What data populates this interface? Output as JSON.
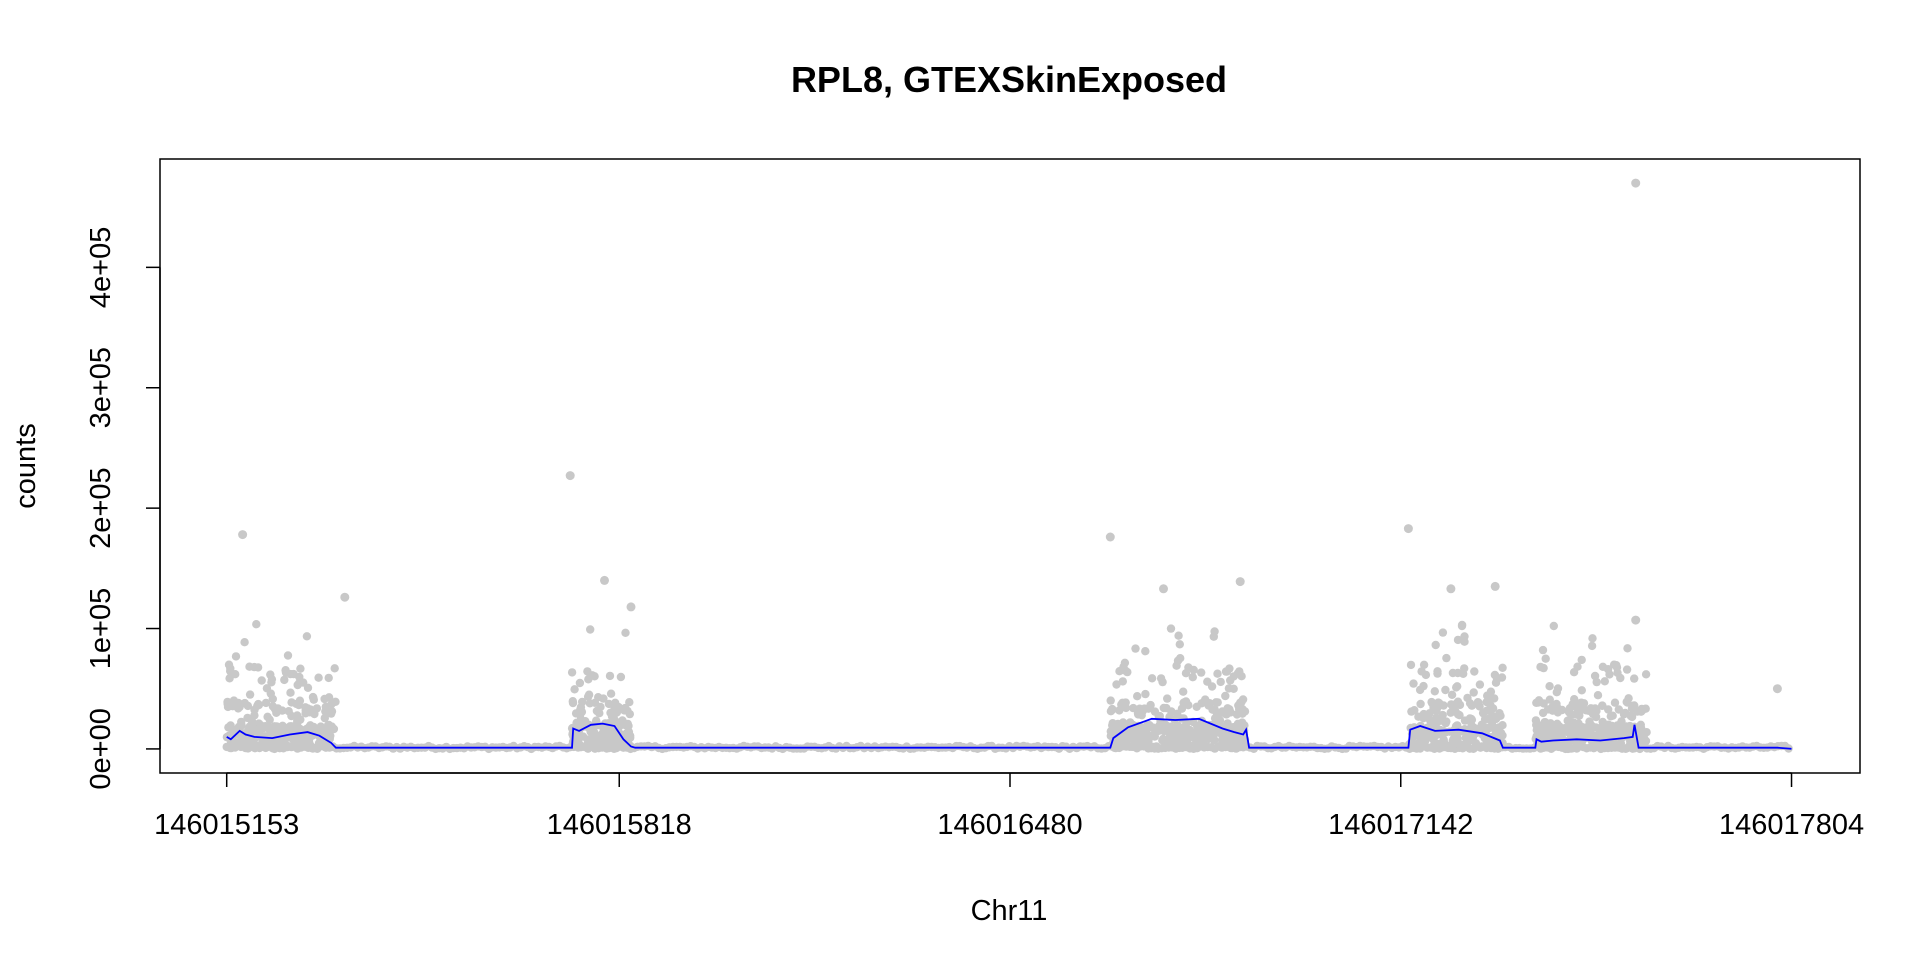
{
  "chart_data": {
    "type": "scatter",
    "title": "RPL8, GTEXSkinExposed",
    "xlabel": "Chr11",
    "ylabel": "counts",
    "xlim": [
      146015040,
      146017920
    ],
    "ylim": [
      -20000,
      490000
    ],
    "x_ticks": [
      146015153,
      146015818,
      146016480,
      146017142,
      146017804
    ],
    "x_tick_labels": [
      "146015153",
      "146015818",
      "146016480",
      "146017142",
      "146017804"
    ],
    "y_ticks": [
      0,
      100000,
      200000,
      300000,
      400000
    ],
    "y_tick_labels": [
      "0e+00",
      "1e+05",
      "2e+05",
      "3e+05",
      "4e+05"
    ],
    "point_color": "#c8c8c8",
    "line_color": "#0000ff",
    "exon_regions": [
      [
        146015153,
        146015338
      ],
      [
        146015738,
        146015838
      ],
      [
        146016650,
        146016880
      ],
      [
        146017155,
        146017315
      ],
      [
        146017370,
        146017560
      ]
    ],
    "outlier_points": [
      {
        "x": 146015180,
        "y": 178000
      },
      {
        "x": 146015353,
        "y": 126000
      },
      {
        "x": 146015735,
        "y": 227000
      },
      {
        "x": 146015793,
        "y": 140000
      },
      {
        "x": 146015838,
        "y": 118000
      },
      {
        "x": 146016650,
        "y": 176000
      },
      {
        "x": 146016740,
        "y": 133000
      },
      {
        "x": 146016870,
        "y": 139000
      },
      {
        "x": 146017155,
        "y": 183000
      },
      {
        "x": 146017227,
        "y": 133000
      },
      {
        "x": 146017302,
        "y": 135000
      },
      {
        "x": 146017540,
        "y": 470000
      },
      {
        "x": 146017540,
        "y": 107000
      },
      {
        "x": 146017780,
        "y": 50000
      }
    ],
    "mean_line": {
      "x": [
        146015153,
        146015160,
        146015175,
        146015185,
        146015200,
        146015230,
        146015260,
        146015290,
        146015310,
        146015330,
        146015338,
        146015345,
        146015738,
        146015740,
        146015750,
        146015770,
        146015790,
        146015810,
        146015825,
        146015838,
        146015845,
        146016650,
        146016655,
        146016680,
        146016720,
        146016760,
        146016800,
        146016840,
        146016860,
        146016875,
        146016880,
        146016885,
        146017155,
        146017158,
        146017175,
        146017200,
        146017240,
        146017280,
        146017310,
        146017315,
        146017370,
        146017372,
        146017380,
        146017400,
        146017440,
        146017480,
        146017520,
        146017535,
        146017538,
        146017545,
        146017780,
        146017800,
        146017804
      ],
      "y": [
        10000,
        8000,
        15000,
        12000,
        10000,
        9000,
        12000,
        14000,
        11000,
        5000,
        1000,
        1000,
        1000,
        17000,
        15000,
        20000,
        21000,
        19000,
        8000,
        2000,
        1000,
        1000,
        9000,
        18000,
        25000,
        24000,
        25000,
        17000,
        14000,
        12000,
        16000,
        1000,
        1000,
        16000,
        19000,
        15000,
        16000,
        13000,
        7000,
        1000,
        1000,
        8000,
        6000,
        7000,
        8000,
        7000,
        9000,
        10000,
        20000,
        1000,
        1000,
        300,
        100
      ]
    }
  }
}
